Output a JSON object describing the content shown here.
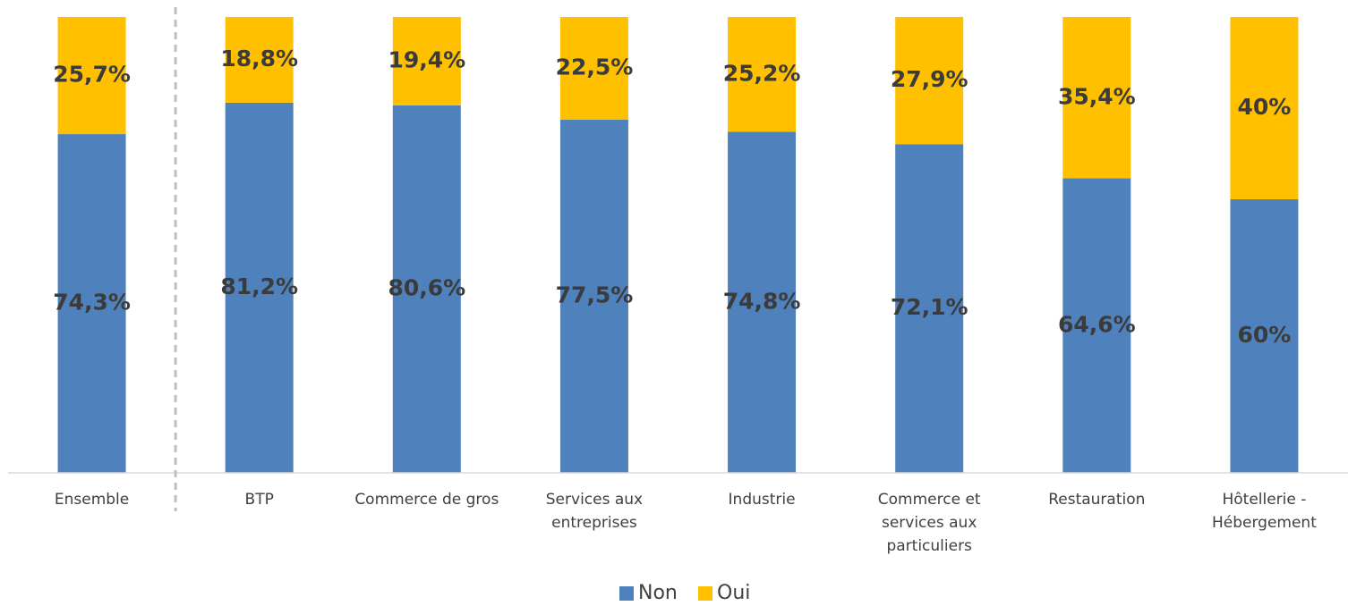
{
  "chart_data": {
    "type": "bar",
    "stacked": true,
    "categories": [
      "Ensemble",
      "BTP",
      "Commerce de gros",
      "Services aux entreprises",
      "Industrie",
      "Commerce et services aux particuliers",
      "Restauration",
      "Hôtellerie - Hébergement"
    ],
    "category_lines": [
      [
        "Ensemble"
      ],
      [
        "BTP"
      ],
      [
        "Commerce de gros"
      ],
      [
        "Services aux",
        "entreprises"
      ],
      [
        "Industrie"
      ],
      [
        "Commerce et",
        "services aux",
        "particuliers"
      ],
      [
        "Restauration"
      ],
      [
        "Hôtellerie -",
        "Hébergement"
      ]
    ],
    "series": [
      {
        "name": "Non",
        "color": "#4f81bd",
        "values": [
          74.3,
          81.2,
          80.6,
          77.5,
          74.8,
          72.1,
          64.6,
          60
        ],
        "labels": [
          "74,3%",
          "81,2%",
          "80,6%",
          "77,5%",
          "74,8%",
          "72,1%",
          "64,6%",
          "60%"
        ]
      },
      {
        "name": "Oui",
        "color": "#ffc000",
        "values": [
          25.7,
          18.8,
          19.4,
          22.5,
          25.2,
          27.9,
          35.4,
          40
        ],
        "labels": [
          "25,7%",
          "18,8%",
          "19,4%",
          "22,5%",
          "25,2%",
          "27,9%",
          "35,4%",
          "40%"
        ]
      }
    ],
    "ylim": [
      0,
      100
    ],
    "title": "",
    "xlabel": "",
    "ylabel": "",
    "grid": false,
    "legend_position": "bottom",
    "separator_after_category": "Ensemble"
  }
}
